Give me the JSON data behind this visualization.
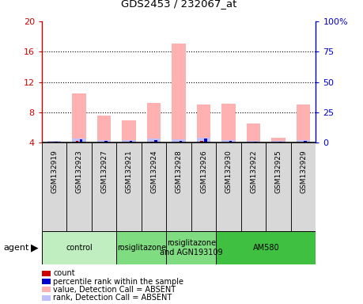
{
  "title": "GDS2453 / 232067_at",
  "samples": [
    "GSM132919",
    "GSM132923",
    "GSM132927",
    "GSM132921",
    "GSM132924",
    "GSM132928",
    "GSM132926",
    "GSM132930",
    "GSM132922",
    "GSM132925",
    "GSM132929"
  ],
  "absent_value": [
    4.15,
    10.5,
    7.6,
    7.0,
    9.3,
    17.1,
    9.1,
    9.2,
    6.5,
    4.7,
    9.0
  ],
  "absent_rank": [
    4.25,
    4.55,
    4.35,
    4.35,
    4.55,
    4.45,
    4.65,
    4.35,
    4.25,
    4.25,
    4.35
  ],
  "count_values": [
    4.08,
    4.28,
    4.08,
    4.08,
    4.18,
    4.08,
    4.28,
    4.08,
    4.08,
    4.08,
    4.08
  ],
  "rank_values": [
    4.18,
    4.48,
    4.28,
    4.28,
    4.38,
    4.28,
    4.58,
    4.28,
    4.18,
    4.18,
    4.28
  ],
  "group_spans": [
    {
      "label": "control",
      "start": 0,
      "end": 3,
      "color": "#c0eec0"
    },
    {
      "label": "rosiglitazone",
      "start": 3,
      "end": 5,
      "color": "#80dc80"
    },
    {
      "label": "rosiglitazone\nand AGN193109",
      "start": 5,
      "end": 7,
      "color": "#80dc80"
    },
    {
      "label": "AM580",
      "start": 7,
      "end": 11,
      "color": "#40c040"
    }
  ],
  "ylim_left": [
    4,
    20
  ],
  "ylim_right": [
    0,
    100
  ],
  "yticks_left": [
    4,
    8,
    12,
    16,
    20
  ],
  "yticks_right": [
    0,
    25,
    50,
    75,
    100
  ],
  "ytick_labels_right": [
    "0",
    "25",
    "50",
    "75",
    "100%"
  ],
  "left_color": "#cc0000",
  "right_color": "#0000cc",
  "bar_color_count": "#cc0000",
  "bar_color_rank": "#0000cc",
  "bar_color_absent_val": "#ffb0b0",
  "bar_color_absent_rank": "#c0c0ff",
  "agent_label": "agent",
  "legend_items": [
    {
      "color": "#cc0000",
      "label": "count"
    },
    {
      "color": "#0000cc",
      "label": "percentile rank within the sample"
    },
    {
      "color": "#ffb0b0",
      "label": "value, Detection Call = ABSENT"
    },
    {
      "color": "#c0c0ff",
      "label": "rank, Detection Call = ABSENT"
    }
  ]
}
